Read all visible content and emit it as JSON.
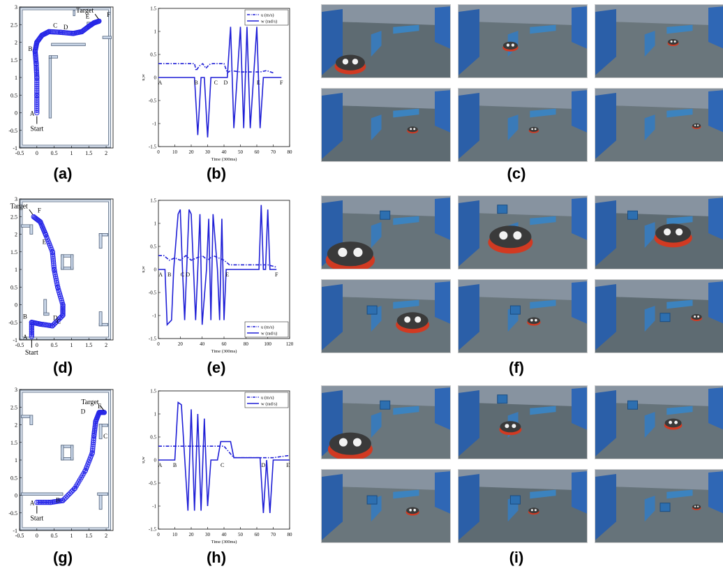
{
  "panels": [
    {
      "id": "a",
      "caption": "(a)"
    },
    {
      "id": "b",
      "caption": "(b)"
    },
    {
      "id": "c",
      "caption": "(c)"
    },
    {
      "id": "d",
      "caption": "(d)"
    },
    {
      "id": "e",
      "caption": "(e)"
    },
    {
      "id": "f",
      "caption": "(f)"
    },
    {
      "id": "g",
      "caption": "(g)"
    },
    {
      "id": "h",
      "caption": "(h)"
    },
    {
      "id": "i",
      "caption": "(i)"
    }
  ],
  "maps": [
    {
      "id": "a",
      "start_label": "Start",
      "target_label": "Target",
      "xlim": [
        -0.5,
        2.2
      ],
      "ylim": [
        -1,
        3
      ],
      "xticks": [
        "-0.5",
        "0",
        "0.5",
        "1",
        "1.5",
        "2"
      ],
      "yticks": [
        "-1",
        "-0.5",
        "0",
        "0.5",
        "1",
        "1.5",
        "2",
        "2.5",
        "3"
      ],
      "points": [
        {
          "label": "A",
          "x": 0,
          "y": 0
        },
        {
          "label": "B",
          "x": -0.05,
          "y": 1.75
        },
        {
          "label": "C",
          "x": 0.35,
          "y": 2.3
        },
        {
          "label": "D",
          "x": 1.05,
          "y": 2.25
        },
        {
          "label": "E",
          "x": 1.65,
          "y": 2.55
        },
        {
          "label": "F",
          "x": 1.9,
          "y": 2.6
        }
      ],
      "path": [
        [
          0,
          0
        ],
        [
          0,
          0.5
        ],
        [
          0,
          1
        ],
        [
          -0.02,
          1.4
        ],
        [
          -0.05,
          1.75
        ],
        [
          0,
          2
        ],
        [
          0.15,
          2.2
        ],
        [
          0.35,
          2.3
        ],
        [
          0.7,
          2.28
        ],
        [
          1.05,
          2.25
        ],
        [
          1.3,
          2.3
        ],
        [
          1.5,
          2.45
        ],
        [
          1.65,
          2.55
        ],
        [
          1.8,
          2.6
        ]
      ]
    },
    {
      "id": "d",
      "start_label": "Start",
      "target_label": "Target",
      "xlim": [
        -0.5,
        2.2
      ],
      "ylim": [
        -1,
        3
      ],
      "xticks": [
        "-0.5",
        "0",
        "0.5",
        "1",
        "1.5",
        "2"
      ],
      "yticks": [
        "-1",
        "-0.5",
        "0",
        "0.5",
        "1",
        "1.5",
        "2",
        "2.5",
        "3"
      ],
      "points": [
        {
          "label": "A",
          "x": -0.2,
          "y": -0.9
        },
        {
          "label": "B",
          "x": -0.2,
          "y": -0.4
        },
        {
          "label": "C",
          "x": 0.45,
          "y": -0.65
        },
        {
          "label": "D",
          "x": 0.75,
          "y": -0.55
        },
        {
          "label": "E",
          "x": 0.4,
          "y": 1.6
        },
        {
          "label": "F",
          "x": -0.1,
          "y": 2.5
        }
      ],
      "path": [
        [
          -0.15,
          -0.9
        ],
        [
          -0.15,
          -0.5
        ],
        [
          0.1,
          -0.55
        ],
        [
          0.45,
          -0.6
        ],
        [
          0.75,
          -0.3
        ],
        [
          0.75,
          0
        ],
        [
          0.6,
          0.5
        ],
        [
          0.5,
          1
        ],
        [
          0.45,
          1.5
        ],
        [
          0.25,
          2
        ],
        [
          0.1,
          2.35
        ],
        [
          -0.1,
          2.5
        ]
      ]
    },
    {
      "id": "g",
      "start_label": "Start",
      "target_label": "Target",
      "xlim": [
        -0.5,
        2.2
      ],
      "ylim": [
        -1,
        3
      ],
      "xticks": [
        "-0.5",
        "0",
        "0.5",
        "1",
        "1.5",
        "2"
      ],
      "yticks": [
        "-1",
        "-0.5",
        "0",
        "0.5",
        "1",
        "1.5",
        "2",
        "2.5",
        "3"
      ],
      "points": [
        {
          "label": "A",
          "x": 0,
          "y": -0.2
        },
        {
          "label": "B",
          "x": 0.75,
          "y": -0.2
        },
        {
          "label": "C",
          "x": 1.8,
          "y": 1.5
        },
        {
          "label": "D",
          "x": 1.55,
          "y": 2.2
        },
        {
          "label": "E",
          "x": 2.0,
          "y": 2.35
        }
      ],
      "path": [
        [
          0,
          -0.2
        ],
        [
          0.4,
          -0.2
        ],
        [
          0.75,
          -0.15
        ],
        [
          1.1,
          0.2
        ],
        [
          1.4,
          0.7
        ],
        [
          1.6,
          1.2
        ],
        [
          1.65,
          1.7
        ],
        [
          1.7,
          2.1
        ],
        [
          1.8,
          2.35
        ],
        [
          1.95,
          2.35
        ]
      ]
    }
  ],
  "chart_data": [
    {
      "id": "b",
      "type": "line",
      "xlabel": "Time (300ms)",
      "ylabel": "u,w",
      "xlim": [
        0,
        80
      ],
      "ylim": [
        -1.5,
        1.5
      ],
      "xticks": [
        "0",
        "10",
        "20",
        "30",
        "40",
        "50",
        "60",
        "70",
        "80"
      ],
      "yticks": [
        "-1.5",
        "-1",
        "-0.5",
        "0",
        "0.5",
        "1",
        "1.5"
      ],
      "legend_position": "top-right",
      "series": [
        {
          "name": "u (m/s)",
          "style": "dash-dot",
          "x": [
            0,
            22,
            23,
            25,
            27,
            29,
            31,
            33,
            40,
            42,
            44,
            50,
            56,
            62,
            66,
            70
          ],
          "y": [
            0.3,
            0.3,
            0.15,
            0.25,
            0.3,
            0.2,
            0.28,
            0.3,
            0.3,
            0.1,
            0.15,
            0.12,
            0.12,
            0.12,
            0.15,
            0.1
          ]
        },
        {
          "name": "w (rad/s)",
          "style": "solid",
          "x": [
            0,
            22,
            24,
            26,
            28,
            30,
            32,
            34,
            42,
            44,
            46,
            48,
            50,
            52,
            54,
            56,
            58,
            60,
            62,
            64,
            66,
            75
          ],
          "y": [
            0,
            0,
            -1.25,
            0,
            0,
            -1.3,
            0,
            0,
            0,
            1.1,
            -1.1,
            0,
            1.1,
            -1.1,
            1.1,
            -1.1,
            0,
            1.1,
            -1.1,
            0,
            0,
            0
          ]
        }
      ],
      "point_labels": [
        {
          "label": "A",
          "x": 1
        },
        {
          "label": "B",
          "x": 23
        },
        {
          "label": "C",
          "x": 35
        },
        {
          "label": "D",
          "x": 41
        },
        {
          "label": "E",
          "x": 61
        },
        {
          "label": "F",
          "x": 75
        }
      ]
    },
    {
      "id": "e",
      "type": "line",
      "xlabel": "Time (300ms)",
      "ylabel": "u,w",
      "xlim": [
        0,
        120
      ],
      "ylim": [
        -1.5,
        1.5
      ],
      "xticks": [
        "0",
        "20",
        "40",
        "60",
        "80",
        "100",
        "120"
      ],
      "yticks": [
        "-1.5",
        "-1",
        "-0.5",
        "0",
        "0.5",
        "1",
        "1.5"
      ],
      "legend_position": "bottom-right",
      "series": [
        {
          "name": "u (m/s)",
          "style": "dash-dot",
          "x": [
            0,
            5,
            10,
            15,
            20,
            25,
            30,
            35,
            40,
            45,
            50,
            55,
            60,
            65,
            70,
            80,
            90,
            100,
            108
          ],
          "y": [
            0.3,
            0.3,
            0.2,
            0.25,
            0.2,
            0.3,
            0.2,
            0.25,
            0.3,
            0.2,
            0.3,
            0.25,
            0.2,
            0.1,
            0.1,
            0.1,
            0.1,
            0.1,
            0.05
          ]
        },
        {
          "name": "w (rad/s)",
          "style": "solid",
          "x": [
            0,
            6,
            8,
            12,
            14,
            18,
            20,
            22,
            24,
            28,
            30,
            34,
            36,
            38,
            40,
            44,
            46,
            48,
            50,
            54,
            56,
            58,
            60,
            62,
            64,
            66,
            92,
            94,
            96,
            98,
            100,
            102,
            108
          ],
          "y": [
            0,
            0,
            -1.2,
            -1.1,
            0,
            1.2,
            1.3,
            0,
            -1.1,
            1.3,
            1.2,
            -1.1,
            0,
            1.2,
            -1.2,
            0,
            1.1,
            -1.1,
            1.2,
            0,
            -1.1,
            1.1,
            -1.1,
            0,
            0,
            0,
            0,
            1.4,
            0,
            0,
            1.3,
            0,
            0
          ]
        }
      ],
      "point_labels": [
        {
          "label": "A",
          "x": 2
        },
        {
          "label": "B",
          "x": 10
        },
        {
          "label": "C",
          "x": 22
        },
        {
          "label": "D",
          "x": 27
        },
        {
          "label": "E",
          "x": 63
        },
        {
          "label": "F",
          "x": 108
        }
      ]
    },
    {
      "id": "h",
      "type": "line",
      "xlabel": "Time (300ms)",
      "ylabel": "u,w",
      "xlim": [
        0,
        80
      ],
      "ylim": [
        -1.5,
        1.5
      ],
      "xticks": [
        "0",
        "10",
        "20",
        "30",
        "40",
        "50",
        "60",
        "70",
        "80"
      ],
      "yticks": [
        "-1.5",
        "-1",
        "-0.5",
        "0",
        "0.5",
        "1",
        "1.5"
      ],
      "legend_position": "top-right",
      "series": [
        {
          "name": "u (m/s)",
          "style": "dash-dot",
          "x": [
            0,
            10,
            20,
            30,
            40,
            46,
            50,
            60,
            70,
            80
          ],
          "y": [
            0.3,
            0.3,
            0.3,
            0.3,
            0.3,
            0.05,
            0.05,
            0.05,
            0.05,
            0.1
          ]
        },
        {
          "name": "w (rad/s)",
          "style": "solid",
          "x": [
            0,
            10,
            12,
            14,
            18,
            20,
            22,
            24,
            26,
            28,
            30,
            32,
            36,
            38,
            40,
            42,
            44,
            46,
            50,
            62,
            64,
            66,
            68,
            70,
            72,
            80
          ],
          "y": [
            0,
            0,
            1.25,
            1.2,
            -1.1,
            1.1,
            -1.1,
            1.0,
            -1.1,
            0.9,
            -1.0,
            0,
            0,
            0.4,
            0.4,
            0.4,
            0.4,
            0.05,
            0.05,
            0.05,
            -1.15,
            0,
            -1.15,
            0,
            0,
            0
          ]
        }
      ],
      "point_labels": [
        {
          "label": "A",
          "x": 1
        },
        {
          "label": "B",
          "x": 10
        },
        {
          "label": "C",
          "x": 39
        },
        {
          "label": "D",
          "x": 64
        },
        {
          "label": "E",
          "x": 79
        }
      ]
    }
  ],
  "photo_sets": [
    {
      "id": "c",
      "count": 6
    },
    {
      "id": "f",
      "count": 6
    },
    {
      "id": "i",
      "count": 6
    }
  ]
}
